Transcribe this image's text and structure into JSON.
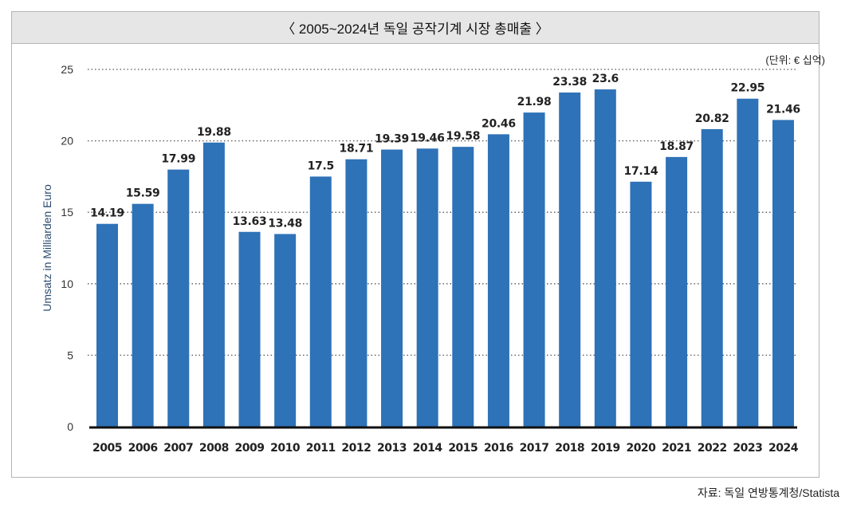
{
  "chart_data": {
    "type": "bar",
    "title": "〈 2005~2024년 독일 공작기계 시장 총매출 〉",
    "unit": "(단위: € 십억)",
    "source": "자료: 독일 연방통계청/Statista",
    "xlabel": "",
    "ylabel": "Umsatz in Milliarden Euro",
    "ylim": [
      0,
      25
    ],
    "yticks": [
      0,
      5,
      10,
      15,
      20,
      25
    ],
    "grid": true,
    "bar_color": "#2e72b8",
    "categories": [
      "2005",
      "2006",
      "2007",
      "2008",
      "2009",
      "2010",
      "2011",
      "2012",
      "2013",
      "2014",
      "2015",
      "2016",
      "2017",
      "2018",
      "2019",
      "2020",
      "2021",
      "2022",
      "2023",
      "2024"
    ],
    "values": [
      14.19,
      15.59,
      17.99,
      19.88,
      13.63,
      13.48,
      17.5,
      18.71,
      19.39,
      19.46,
      19.58,
      20.46,
      21.98,
      23.38,
      23.6,
      17.14,
      18.87,
      20.82,
      22.95,
      21.46
    ]
  }
}
